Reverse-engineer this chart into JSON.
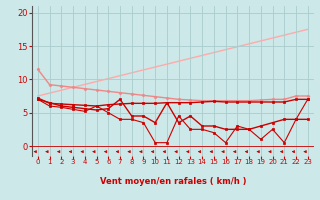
{
  "bg_color": "#cce8e8",
  "grid_color": "#aacccc",
  "xlabel": "Vent moyen/en rafales ( km/h )",
  "ylim": [
    -1.5,
    21
  ],
  "xlim": [
    -0.5,
    23.5
  ],
  "yticks": [
    0,
    5,
    10,
    15,
    20
  ],
  "xticks": [
    0,
    1,
    2,
    3,
    4,
    5,
    6,
    7,
    8,
    9,
    10,
    11,
    12,
    13,
    14,
    15,
    16,
    17,
    18,
    19,
    20,
    21,
    22,
    23
  ],
  "series": [
    {
      "x": [
        0,
        23
      ],
      "y": [
        7.5,
        17.5
      ],
      "color": "#ffaaaa",
      "lw": 1.0,
      "marker": null,
      "ms": 0,
      "zorder": 1
    },
    {
      "x": [
        0,
        1,
        2,
        3,
        4,
        5,
        6,
        7,
        8,
        9,
        10,
        11,
        12,
        13,
        14,
        15,
        16,
        17,
        18,
        19,
        20,
        21,
        22,
        23
      ],
      "y": [
        11.5,
        9.2,
        9.0,
        8.8,
        8.6,
        8.4,
        8.2,
        8.0,
        7.8,
        7.6,
        7.4,
        7.2,
        7.0,
        6.9,
        6.8,
        6.8,
        6.8,
        6.8,
        6.8,
        6.9,
        7.0,
        7.0,
        7.5,
        7.5
      ],
      "color": "#ee8888",
      "lw": 1.0,
      "marker": "D",
      "ms": 1.5,
      "zorder": 2
    },
    {
      "x": [
        0,
        1,
        2,
        3,
        4,
        5,
        6,
        7,
        8,
        9,
        10,
        11,
        12,
        13,
        14,
        15,
        16,
        17,
        18,
        19,
        20,
        21,
        22,
        23
      ],
      "y": [
        7.2,
        6.4,
        6.3,
        6.2,
        6.1,
        6.0,
        6.2,
        6.3,
        6.4,
        6.4,
        6.4,
        6.5,
        6.5,
        6.5,
        6.6,
        6.7,
        6.6,
        6.6,
        6.6,
        6.6,
        6.6,
        6.6,
        7.0,
        7.0
      ],
      "color": "#cc0000",
      "lw": 1.0,
      "marker": "s",
      "ms": 1.5,
      "zorder": 5
    },
    {
      "x": [
        0,
        1,
        2,
        3,
        4,
        5,
        6,
        7,
        8,
        9,
        10,
        11,
        12,
        13,
        14,
        15,
        16,
        17,
        18,
        19,
        20,
        21,
        22,
        23
      ],
      "y": [
        7.0,
        6.5,
        6.0,
        5.8,
        5.6,
        5.4,
        5.6,
        7.0,
        4.5,
        4.5,
        3.5,
        6.5,
        3.5,
        4.5,
        3.0,
        3.0,
        2.5,
        2.5,
        2.5,
        3.0,
        3.5,
        4.0,
        4.0,
        4.0
      ],
      "color": "#cc0000",
      "lw": 1.0,
      "marker": "s",
      "ms": 1.5,
      "zorder": 4
    },
    {
      "x": [
        0,
        1,
        2,
        3,
        4,
        5,
        6,
        7,
        8,
        9,
        10,
        11,
        12,
        13,
        14,
        15,
        16,
        17,
        18,
        19,
        20,
        21,
        22,
        23
      ],
      "y": [
        7.0,
        6.0,
        5.8,
        5.5,
        5.2,
        6.0,
        5.0,
        4.0,
        4.0,
        3.5,
        0.5,
        0.5,
        4.5,
        2.5,
        2.5,
        2.0,
        0.5,
        3.0,
        2.5,
        1.0,
        2.5,
        0.5,
        4.0,
        7.0
      ],
      "color": "#cc0000",
      "lw": 0.8,
      "marker": "s",
      "ms": 1.5,
      "zorder": 3
    }
  ],
  "arrow_color": "#cc0000",
  "font_color": "#cc0000",
  "tick_fontsize_x": 5,
  "tick_fontsize_y": 6,
  "xlabel_fontsize": 6
}
